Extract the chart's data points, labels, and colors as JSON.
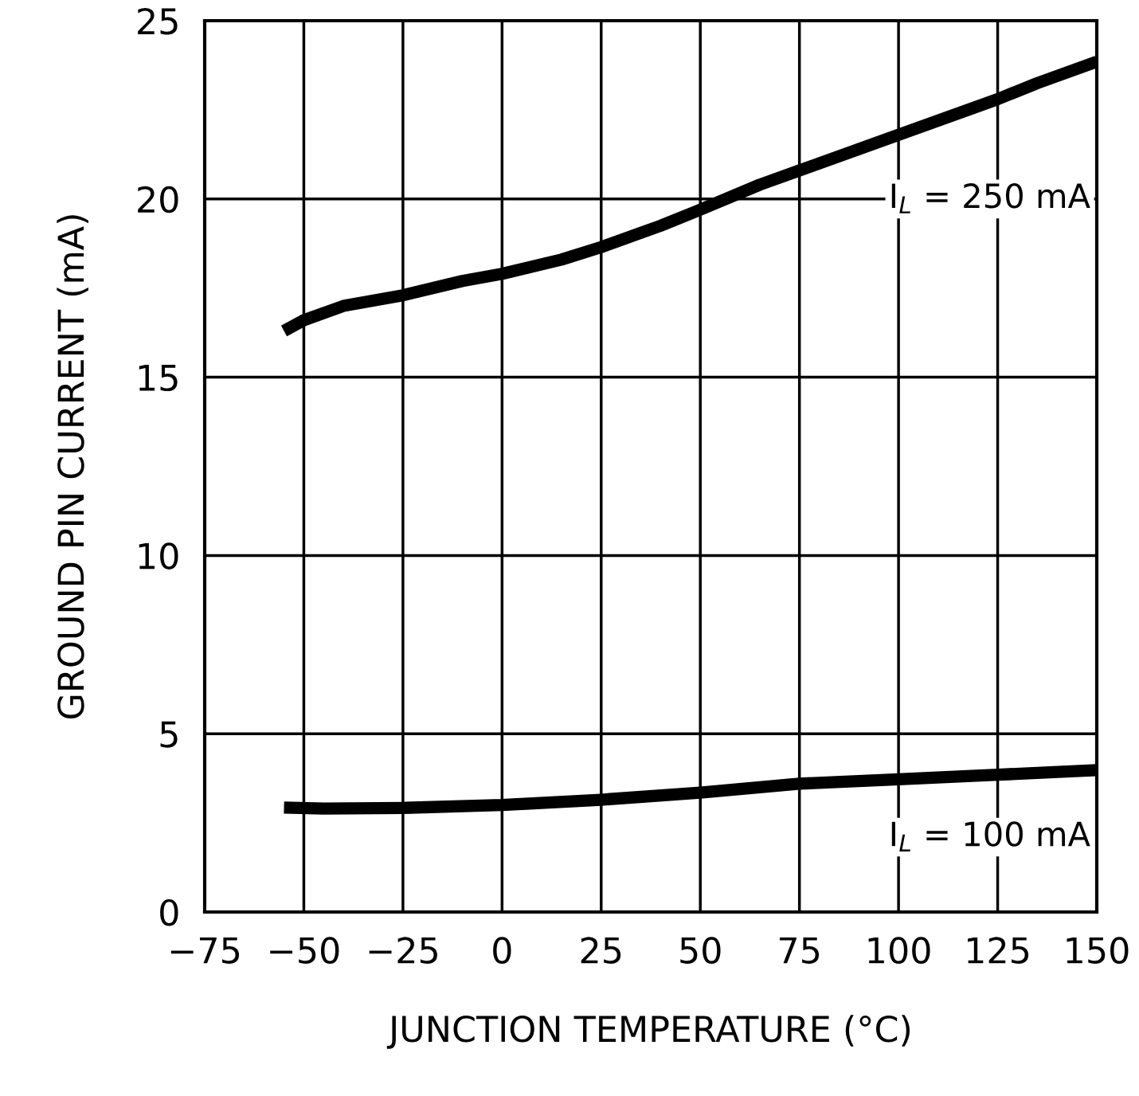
{
  "chart_data": {
    "type": "line",
    "xlabel": "JUNCTION TEMPERATURE (°C)",
    "ylabel": "GROUND PIN CURRENT (mA)",
    "xlim": [
      -75,
      150
    ],
    "xticks": [
      {
        "value": -75,
        "label": "−75"
      },
      {
        "value": -50,
        "label": "−50"
      },
      {
        "value": -25,
        "label": "−25"
      },
      0,
      25,
      50,
      75,
      100,
      125,
      150
    ],
    "ylim": [
      0,
      25
    ],
    "yticks": [
      0,
      5,
      10,
      15,
      20,
      25
    ],
    "grid": true,
    "legend": false,
    "series": [
      {
        "name": "I$_{L}$ = 250 mA",
        "color": "#000000",
        "x": [
          -55,
          -50,
          -40,
          -25,
          -10,
          0,
          15,
          25,
          40,
          50,
          65,
          75,
          100,
          125,
          135,
          150
        ],
        "values": [
          16.3,
          16.6,
          17.0,
          17.3,
          17.7,
          17.9,
          18.3,
          18.65,
          19.25,
          19.7,
          20.4,
          20.8,
          21.8,
          22.8,
          23.25,
          23.85
        ]
      },
      {
        "name": "I$_{L}$ = 100 mA",
        "color": "#000000",
        "x": [
          -55,
          -45,
          -25,
          0,
          25,
          50,
          75,
          100,
          125,
          150
        ],
        "values": [
          2.93,
          2.9,
          2.92,
          3.0,
          3.15,
          3.35,
          3.6,
          3.72,
          3.85,
          3.98
        ]
      }
    ]
  }
}
